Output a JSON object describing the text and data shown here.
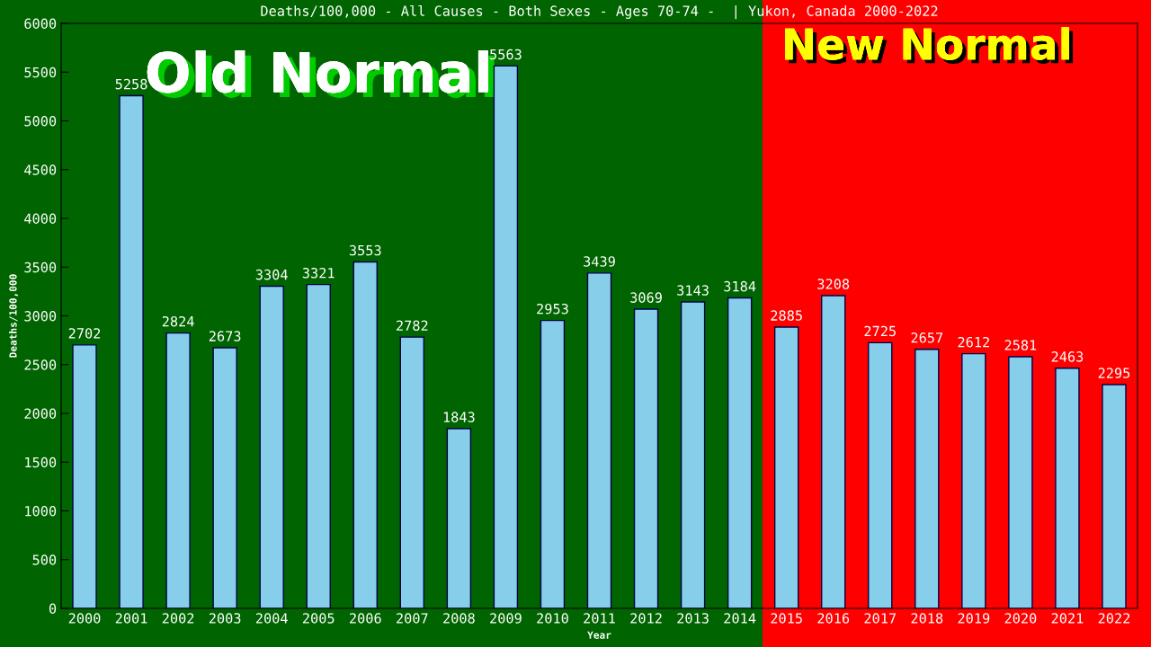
{
  "chart_data": {
    "type": "bar",
    "title": "Deaths/100,000 - All Causes - Both Sexes - Ages 70-74 -  | Yukon, Canada 2000-2022",
    "xlabel": "Year",
    "ylabel": "Deaths/100,000",
    "categories": [
      "2000",
      "2001",
      "2002",
      "2003",
      "2004",
      "2005",
      "2006",
      "2007",
      "2008",
      "2009",
      "2010",
      "2011",
      "2012",
      "2013",
      "2014",
      "2015",
      "2016",
      "2017",
      "2018",
      "2019",
      "2020",
      "2021",
      "2022"
    ],
    "values": [
      2702,
      5258,
      2824,
      2673,
      3304,
      3321,
      3553,
      2782,
      1843,
      5563,
      2953,
      3439,
      3069,
      3143,
      3184,
      2885,
      3208,
      2725,
      2657,
      2612,
      2581,
      2463,
      2295
    ],
    "color": "#87ceeb",
    "data_labels": true,
    "ylim": [
      0,
      6000
    ],
    "yticks": [
      0,
      500,
      1000,
      1500,
      2000,
      2500,
      3000,
      3500,
      4000,
      4500,
      5000,
      5500,
      6000
    ],
    "bands": [
      {
        "axis": "x",
        "from": "2000",
        "to": "2014",
        "label": "Old Normal",
        "color": "#006400"
      },
      {
        "axis": "x",
        "from": "2015",
        "to": "2022",
        "label": "New Normal",
        "color": "#ff0000"
      }
    ],
    "grid": false,
    "legend": false
  }
}
